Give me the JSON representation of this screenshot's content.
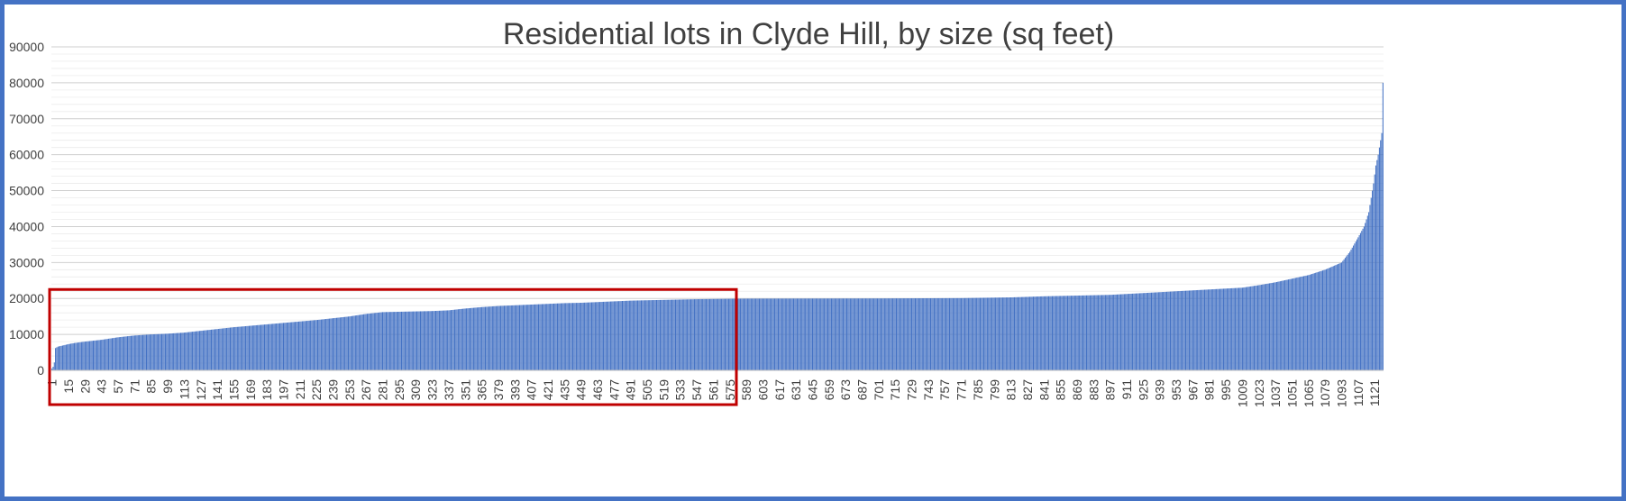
{
  "chart_data": {
    "type": "bar",
    "title": "Residential lots in Clyde Hill, by size (sq feet)",
    "xlabel": "",
    "ylabel": "",
    "ylim": [
      0,
      90000
    ],
    "y_ticks": [
      0,
      10000,
      20000,
      30000,
      40000,
      50000,
      60000,
      70000,
      80000,
      90000
    ],
    "y_minor_step": 2000,
    "x_count": 1128,
    "x_tick_start": 1,
    "x_tick_step": 14,
    "x_tick_labels": [
      "1",
      "15",
      "29",
      "43",
      "57",
      "71",
      "85",
      "99",
      "113",
      "127",
      "141",
      "155",
      "169",
      "183",
      "197",
      "211",
      "225",
      "239",
      "253",
      "267",
      "281",
      "295",
      "309",
      "323",
      "337",
      "351",
      "365",
      "379",
      "393",
      "407",
      "421",
      "435",
      "449",
      "463",
      "477",
      "491",
      "505",
      "519",
      "533",
      "547",
      "561",
      "575",
      "589",
      "603",
      "617",
      "631",
      "645",
      "659",
      "673",
      "687",
      "701",
      "715",
      "729",
      "743",
      "757",
      "771",
      "785",
      "799",
      "813",
      "827",
      "841",
      "855",
      "869",
      "883",
      "897",
      "911",
      "925",
      "939",
      "953",
      "967",
      "981",
      "995",
      "1009",
      "1023",
      "1037",
      "1051",
      "1065",
      "1079",
      "1093",
      "1107",
      "1121"
    ],
    "value_profile": [
      [
        1,
        500
      ],
      [
        2,
        1000
      ],
      [
        3,
        2200
      ],
      [
        4,
        6200
      ],
      [
        6,
        6600
      ],
      [
        10,
        6900
      ],
      [
        15,
        7300
      ],
      [
        20,
        7600
      ],
      [
        29,
        8000
      ],
      [
        43,
        8500
      ],
      [
        57,
        9200
      ],
      [
        71,
        9700
      ],
      [
        85,
        10000
      ],
      [
        99,
        10200
      ],
      [
        113,
        10500
      ],
      [
        127,
        11000
      ],
      [
        141,
        11500
      ],
      [
        155,
        12000
      ],
      [
        169,
        12400
      ],
      [
        183,
        12800
      ],
      [
        197,
        13200
      ],
      [
        211,
        13600
      ],
      [
        225,
        14000
      ],
      [
        239,
        14500
      ],
      [
        253,
        15000
      ],
      [
        267,
        15700
      ],
      [
        281,
        16200
      ],
      [
        295,
        16300
      ],
      [
        309,
        16400
      ],
      [
        323,
        16500
      ],
      [
        337,
        16700
      ],
      [
        351,
        17200
      ],
      [
        365,
        17600
      ],
      [
        379,
        17900
      ],
      [
        393,
        18100
      ],
      [
        407,
        18300
      ],
      [
        421,
        18500
      ],
      [
        435,
        18700
      ],
      [
        449,
        18800
      ],
      [
        463,
        19000
      ],
      [
        477,
        19200
      ],
      [
        491,
        19400
      ],
      [
        505,
        19500
      ],
      [
        519,
        19600
      ],
      [
        533,
        19700
      ],
      [
        547,
        19800
      ],
      [
        561,
        19850
      ],
      [
        575,
        19900
      ],
      [
        589,
        19950
      ],
      [
        700,
        20000
      ],
      [
        771,
        20100
      ],
      [
        813,
        20300
      ],
      [
        841,
        20600
      ],
      [
        869,
        20800
      ],
      [
        897,
        21000
      ],
      [
        925,
        21500
      ],
      [
        953,
        22000
      ],
      [
        981,
        22500
      ],
      [
        1009,
        23000
      ],
      [
        1023,
        23700
      ],
      [
        1037,
        24500
      ],
      [
        1051,
        25500
      ],
      [
        1065,
        26500
      ],
      [
        1079,
        28000
      ],
      [
        1093,
        30000
      ],
      [
        1100,
        33000
      ],
      [
        1107,
        37000
      ],
      [
        1112,
        40000
      ],
      [
        1116,
        44000
      ],
      [
        1118,
        48000
      ],
      [
        1120,
        52000
      ],
      [
        1122,
        57000
      ],
      [
        1124,
        60000
      ],
      [
        1126,
        64000
      ],
      [
        1127,
        66000
      ],
      [
        1128,
        80000
      ]
    ],
    "highlight_range": [
      1,
      580
    ],
    "grid": true,
    "legend": "none"
  },
  "colors": {
    "bar": "#4472c4",
    "bar_outline": "#2f5597",
    "highlight_box": "#c00000",
    "frame": "#4472c4",
    "grid": "#d9d9d9",
    "text": "#404040"
  }
}
